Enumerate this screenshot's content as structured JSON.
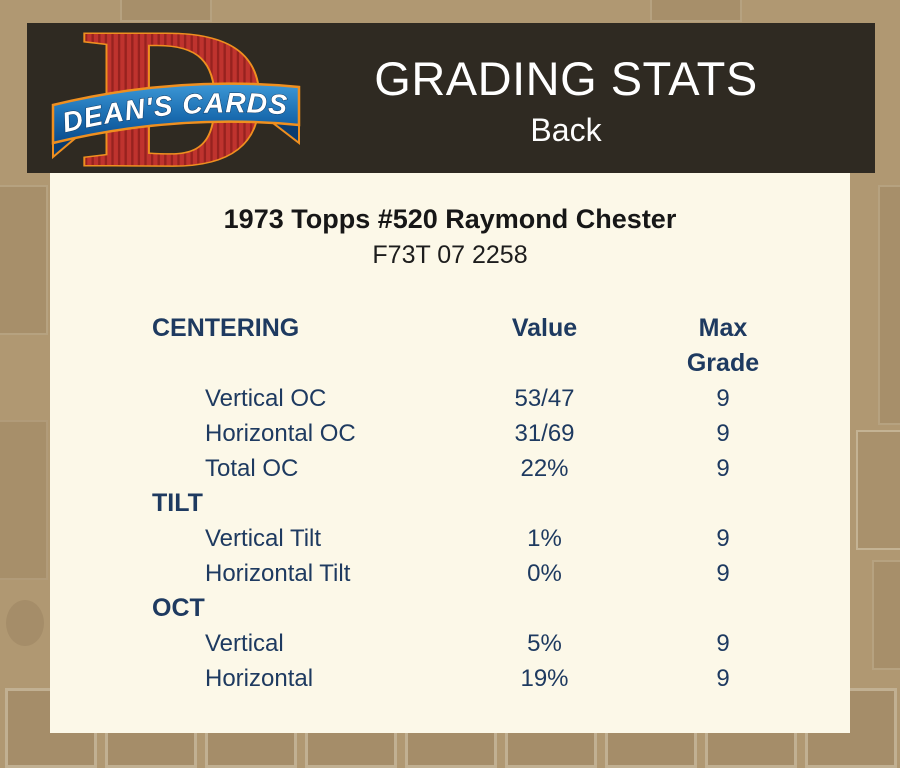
{
  "page": {
    "background_color": "#b09872",
    "bar_color": "#2f2a22",
    "panel_color": "#fcf8e8",
    "accent_color": "#1e3a60"
  },
  "header": {
    "logo": {
      "letter": "D",
      "brand": "DEAN'S CARDS"
    },
    "title": "GRADING STATS",
    "subtitle": "Back"
  },
  "card": {
    "title": "1973 Topps #520 Raymond Chester",
    "code": "F73T 07 2258"
  },
  "stats": {
    "columns": {
      "value": "Value",
      "max_grade": "Max Grade"
    },
    "sections": [
      {
        "name": "CENTERING",
        "rows": [
          {
            "label": "Vertical OC",
            "value": "53/47",
            "max_grade": "9"
          },
          {
            "label": "Horizontal OC",
            "value": "31/69",
            "max_grade": "9"
          },
          {
            "label": "Total OC",
            "value": "22%",
            "max_grade": "9"
          }
        ]
      },
      {
        "name": "TILT",
        "rows": [
          {
            "label": "Vertical Tilt",
            "value": "1%",
            "max_grade": "9"
          },
          {
            "label": "Horizontal Tilt",
            "value": "0%",
            "max_grade": "9"
          }
        ]
      },
      {
        "name": "OCT",
        "rows": [
          {
            "label": "Vertical",
            "value": "5%",
            "max_grade": "9"
          },
          {
            "label": "Horizontal",
            "value": "19%",
            "max_grade": "9"
          }
        ]
      }
    ]
  }
}
